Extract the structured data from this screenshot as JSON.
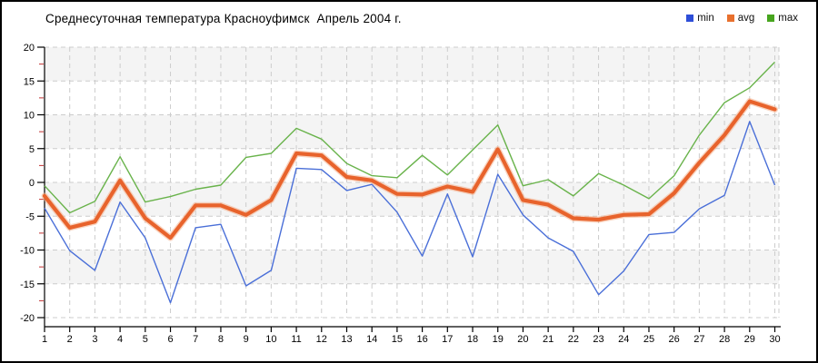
{
  "chart": {
    "title": "Среднесуточная температура Красноуфимск  Апрель 2004 г.",
    "legend": [
      {
        "label": "min",
        "color": "#2e4ed8"
      },
      {
        "label": "avg",
        "color": "#e8702e"
      },
      {
        "label": "max",
        "color": "#47a51e"
      }
    ]
  },
  "chart_data": {
    "type": "line",
    "title": "Среднесуточная температура Красноуфимск  Апрель 2004 г.",
    "x": [
      1,
      2,
      3,
      4,
      5,
      6,
      7,
      8,
      9,
      10,
      11,
      12,
      13,
      14,
      15,
      16,
      17,
      18,
      19,
      20,
      21,
      22,
      23,
      24,
      25,
      26,
      27,
      28,
      29,
      30
    ],
    "ylim": [
      -20,
      20
    ],
    "y_major_step": 5,
    "y_minor_step": 2.5,
    "grid": true,
    "legend_position": "top-right",
    "series": [
      {
        "name": "min",
        "color": "#4a6fd8",
        "values": [
          -3.8,
          -10.1,
          -13.0,
          -2.9,
          -8.2,
          -17.8,
          -6.7,
          -6.2,
          -15.3,
          -13.0,
          2.1,
          1.9,
          -1.2,
          -0.3,
          -4.4,
          -10.9,
          -1.7,
          -11.0,
          1.2,
          -4.8,
          -8.2,
          -10.2,
          -16.6,
          -13.1,
          -7.7,
          -7.4,
          -3.9,
          -1.9,
          9.0,
          -0.4
        ]
      },
      {
        "name": "avg",
        "color": "#e8632c",
        "halo_color": "#f4b18c",
        "values": [
          -2.0,
          -6.7,
          -5.8,
          0.3,
          -5.3,
          -8.2,
          -3.4,
          -3.4,
          -4.8,
          -2.6,
          4.3,
          4.0,
          0.8,
          0.3,
          -1.7,
          -1.8,
          -0.6,
          -1.4,
          4.9,
          -2.6,
          -3.3,
          -5.3,
          -5.5,
          -4.8,
          -4.7,
          -1.6,
          2.9,
          7.0,
          12.0,
          10.8
        ]
      },
      {
        "name": "max",
        "color": "#69b34b",
        "values": [
          -0.5,
          -4.5,
          -2.8,
          3.8,
          -2.9,
          -2.1,
          -1.0,
          -0.4,
          3.7,
          4.3,
          8.0,
          6.4,
          2.8,
          1.0,
          0.7,
          4.0,
          1.1,
          4.8,
          8.5,
          -0.5,
          0.4,
          -2.0,
          1.3,
          -0.4,
          -2.4,
          1.0,
          7.0,
          11.8,
          14.0,
          17.8
        ]
      }
    ],
    "band_color": "#f4f4f4",
    "grid_color": "#cccccc",
    "minor_tick_color": "#c03030",
    "axis_color": "#000000"
  }
}
